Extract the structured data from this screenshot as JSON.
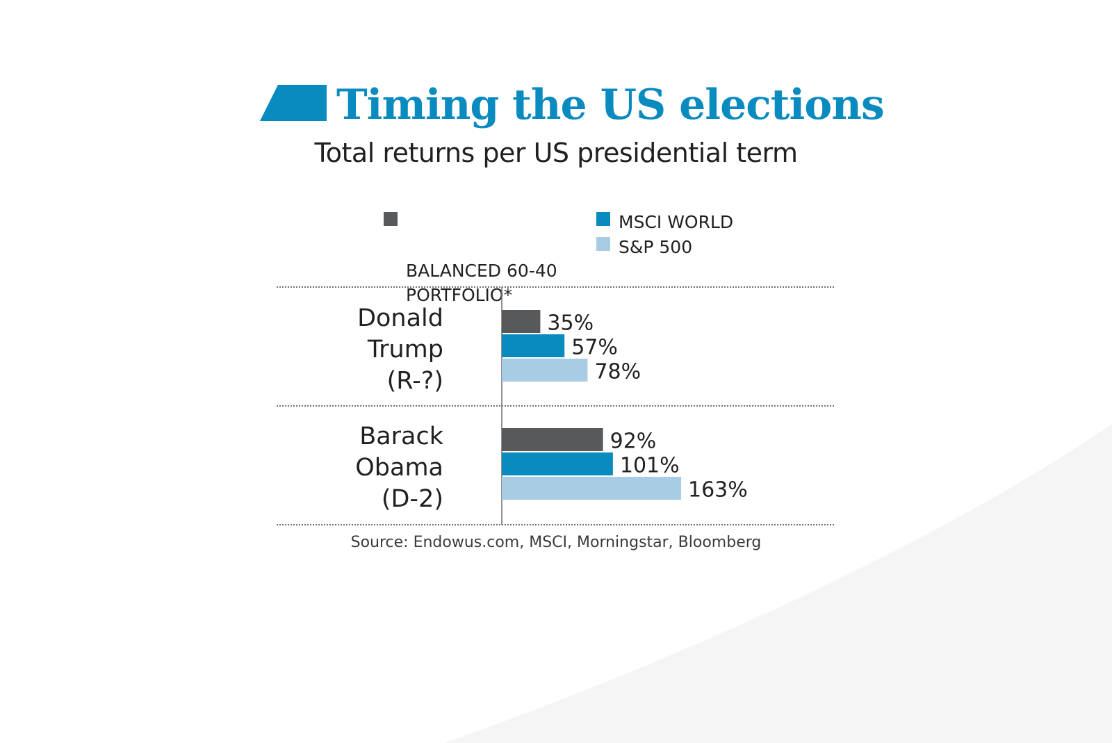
{
  "title": "Timing the US elections",
  "subtitle": "Total returns per US presidential term",
  "legend": [
    {
      "label": "BALANCED 60-40\nPORTFOLIO*",
      "color": "#58595b"
    },
    {
      "label": "MSCI WORLD",
      "color": "#0a8bc0"
    },
    {
      "label": "S&P 500",
      "color": "#a7cce3"
    }
  ],
  "source": "Source: Endowus.com, MSCI, Morningstar, Bloomberg",
  "colors": {
    "accent": "#0a8bc0",
    "dark": "#58595b",
    "light": "#a7cce3"
  },
  "chart_data": {
    "type": "bar",
    "orientation": "horizontal",
    "categories": [
      "Donald\nTrump\n(R-?)",
      "Barack\nObama\n(D-2)"
    ],
    "series": [
      {
        "name": "BALANCED 60-40 PORTFOLIO*",
        "values": [
          35,
          92
        ],
        "labels": [
          "35%",
          "92%"
        ]
      },
      {
        "name": "MSCI WORLD",
        "values": [
          57,
          101
        ],
        "labels": [
          "57%",
          "101%"
        ]
      },
      {
        "name": "S&P 500",
        "values": [
          78,
          163
        ],
        "labels": [
          "78%",
          "163%"
        ]
      }
    ],
    "unit": "%",
    "xlim": [
      0,
      163
    ],
    "legend_position": "top"
  }
}
